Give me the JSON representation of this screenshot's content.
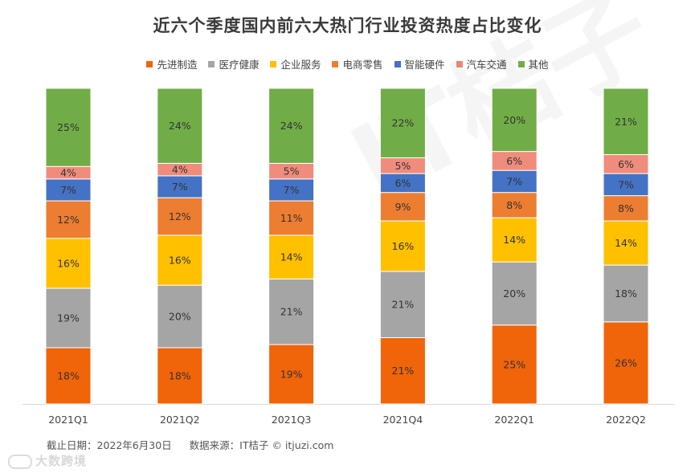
{
  "chart_data": {
    "type": "bar",
    "stacked": true,
    "title": "近六个季度国内前六大热门行业投资热度占比变化",
    "categories": [
      "2021Q1",
      "2021Q2",
      "2021Q3",
      "2021Q4",
      "2022Q1",
      "2022Q2"
    ],
    "series": [
      {
        "name": "先进制造",
        "color": "#f0640a",
        "values": [
          18,
          18,
          19,
          21,
          25,
          26
        ]
      },
      {
        "name": "医疗健康",
        "color": "#a5a5a5",
        "values": [
          19,
          20,
          21,
          21,
          20,
          18
        ]
      },
      {
        "name": "企业服务",
        "color": "#ffc000",
        "values": [
          16,
          16,
          14,
          16,
          14,
          14
        ]
      },
      {
        "name": "电商零售",
        "color": "#ed7d31",
        "values": [
          12,
          12,
          11,
          9,
          8,
          8
        ]
      },
      {
        "name": "智能硬件",
        "color": "#4472c4",
        "values": [
          7,
          7,
          7,
          6,
          7,
          7
        ]
      },
      {
        "name": "汽车交通",
        "color": "#f08c7c",
        "values": [
          4,
          4,
          5,
          5,
          6,
          6
        ]
      },
      {
        "name": "其他",
        "color": "#70ad47",
        "values": [
          25,
          24,
          24,
          22,
          20,
          21
        ]
      }
    ],
    "value_suffix": "%",
    "legend_position": "top",
    "grid": false
  },
  "footer": {
    "date_text": "截止日期：2022年6月30日",
    "source_text": "数据来源：IT桔子 © itjuzi.com"
  },
  "brand": {
    "text": "大数跨境"
  },
  "watermark": {
    "text": "IT桔子"
  }
}
